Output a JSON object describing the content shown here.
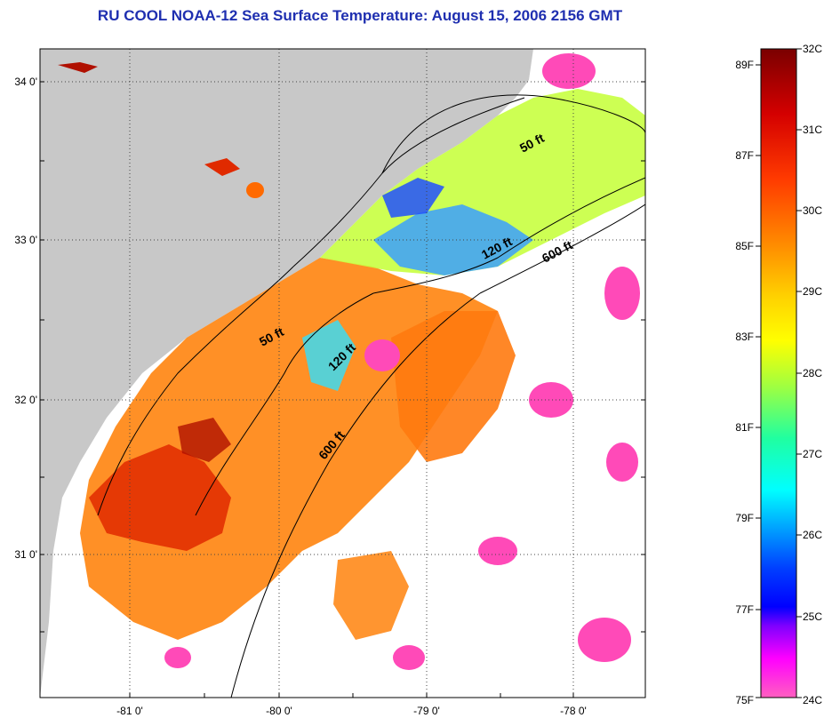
{
  "title": "RU COOL  NOAA-12  Sea Surface Temperature:  August 15, 2006 2156 GMT",
  "map": {
    "lat_labels": [
      "34 0'",
      "33 0'",
      "32 0'",
      "31 0'"
    ],
    "lon_labels": [
      "-81 0'",
      "-80 0'",
      "-79 0'",
      "-78 0'"
    ],
    "contours": [
      {
        "label": "50 ft",
        "depth_ft": 50
      },
      {
        "label": "120 ft",
        "depth_ft": 120
      },
      {
        "label": "600 ft",
        "depth_ft": 600
      },
      {
        "label": "50 ft",
        "depth_ft": 50
      },
      {
        "label": "120 ft",
        "depth_ft": 120
      },
      {
        "label": "600 ft",
        "depth_ft": 600
      }
    ]
  },
  "colorbar": {
    "celsius_labels": [
      "32C",
      "31C",
      "30C",
      "29C",
      "28C",
      "27C",
      "26C",
      "25C",
      "24C"
    ],
    "fahrenheit_labels": [
      "89F",
      "87F",
      "85F",
      "83F",
      "81F",
      "79F",
      "77F",
      "75F"
    ],
    "colors": [
      "#7a0000",
      "#d40000",
      "#ff3a00",
      "#ff8a00",
      "#ffd000",
      "#ffff00",
      "#a0ff40",
      "#20ffa0",
      "#00ffff",
      "#00a0ff",
      "#0040ff",
      "#0000ff",
      "#8000ff",
      "#ff00ff",
      "#ff60c0"
    ]
  },
  "colors": {
    "land": "#c8c8c8",
    "ocean_missing": "#ffffff",
    "title": "#1f2fb0"
  }
}
